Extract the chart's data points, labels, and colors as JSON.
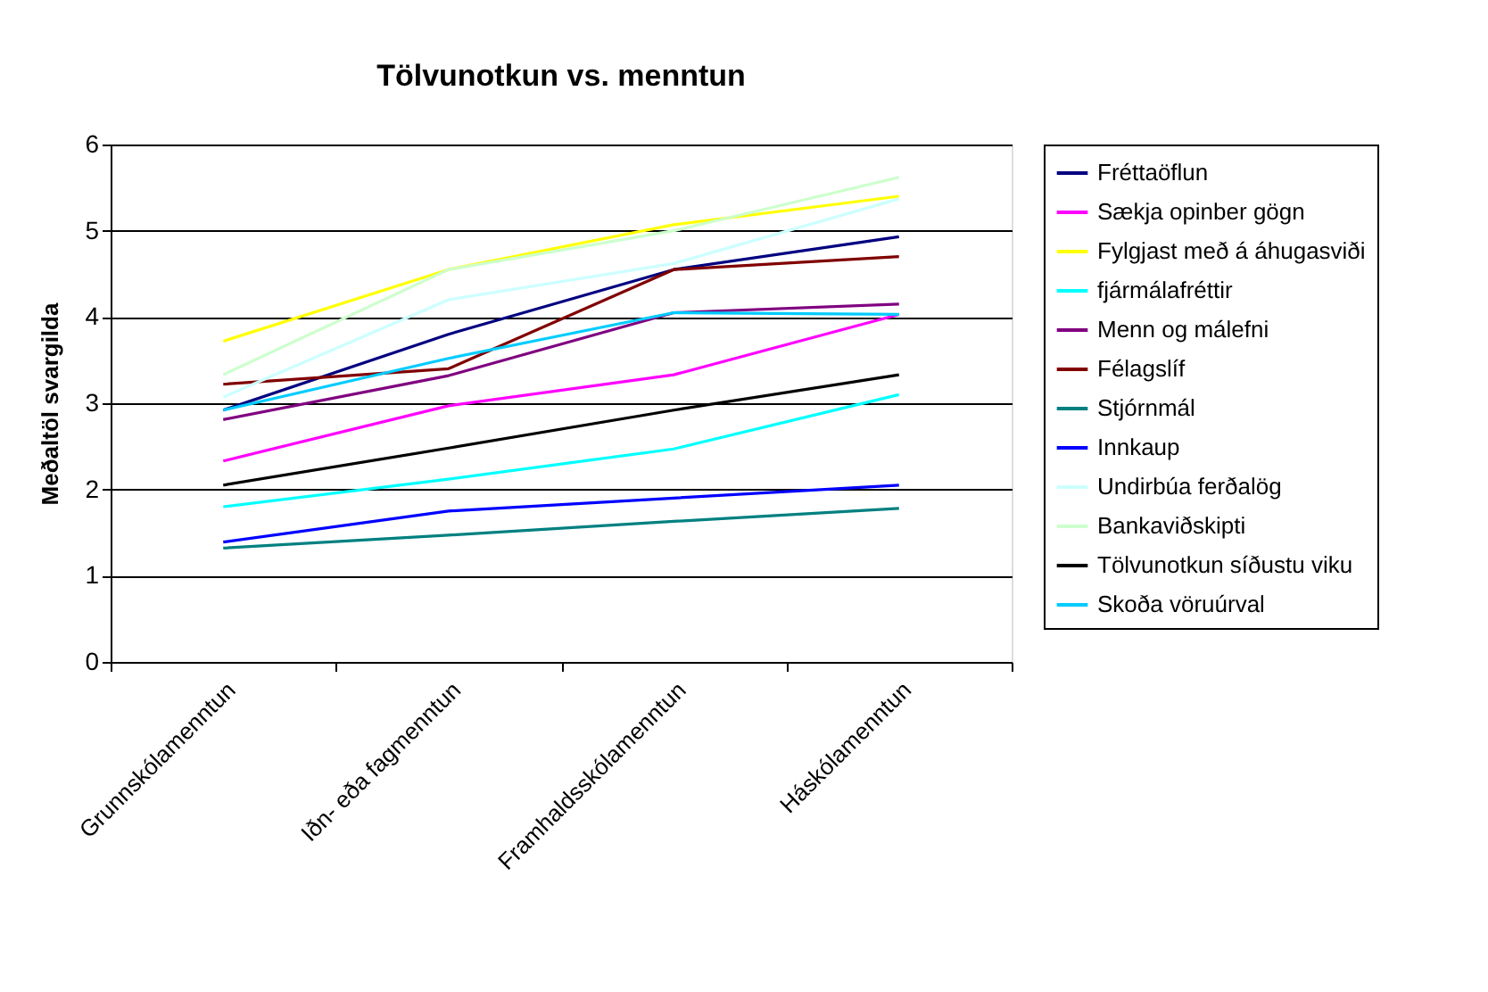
{
  "chart_data": {
    "type": "line",
    "title": "Tölvunotkun vs. menntun",
    "ylabel": "Meðaltöl svargilda",
    "categories": [
      "Grunnskólamenntun",
      "Iðn- eða fagmenntun",
      "Framhaldsskólamenntun",
      "Háskólamenntun"
    ],
    "ylim": [
      0,
      6
    ],
    "yticks": [
      0,
      1,
      2,
      3,
      4,
      5,
      6
    ],
    "grid": "y",
    "legend": "right",
    "marker": "none",
    "line_style": "solid",
    "series": [
      {
        "name": "Fréttaöflun",
        "color": "#000080",
        "values": [
          2.92,
          3.8,
          4.55,
          4.93
        ]
      },
      {
        "name": "Sækja opinber gögn",
        "color": "#ff00ff",
        "values": [
          2.33,
          2.97,
          3.33,
          4.03
        ]
      },
      {
        "name": "Fylgjast með á áhugasviði",
        "color": "#ffff00",
        "values": [
          3.72,
          4.55,
          5.07,
          5.4
        ]
      },
      {
        "name": "fjármálafréttir",
        "color": "#00ffff",
        "values": [
          1.8,
          2.12,
          2.47,
          3.1
        ]
      },
      {
        "name": "Menn og málefni",
        "color": "#800080",
        "values": [
          2.81,
          3.32,
          4.05,
          4.15
        ]
      },
      {
        "name": "Félagslíf",
        "color": "#800000",
        "values": [
          3.22,
          3.4,
          4.55,
          4.7
        ]
      },
      {
        "name": "Stjórnmál",
        "color": "#008080",
        "values": [
          1.32,
          1.47,
          1.63,
          1.78
        ]
      },
      {
        "name": "Innkaup",
        "color": "#0000ff",
        "values": [
          1.39,
          1.75,
          1.9,
          2.05
        ]
      },
      {
        "name": "Undirbúa ferðalög",
        "color": "#ccffff",
        "values": [
          3.07,
          4.2,
          4.62,
          5.37
        ]
      },
      {
        "name": "Bankaviðskipti",
        "color": "#ccffcc",
        "values": [
          3.33,
          4.55,
          5.0,
          5.62
        ]
      },
      {
        "name": "Tölvunotkun síðustu viku",
        "color": "#000000",
        "values": [
          2.05,
          2.48,
          2.92,
          3.33
        ]
      },
      {
        "name": "Skoða vöruúrval",
        "color": "#00ccff",
        "values": [
          2.92,
          3.52,
          4.05,
          4.03
        ]
      }
    ]
  }
}
